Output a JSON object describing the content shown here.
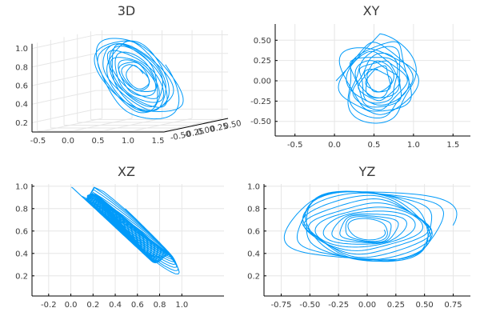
{
  "series_color": "#009af9",
  "chart_data": [
    {
      "type": "line3d",
      "title": "3D",
      "x_ticks": [
        "-0.5",
        "0.0",
        "0.5",
        "1.0",
        "1.5"
      ],
      "y_ticks": [
        "-0.50",
        "-0.25",
        "0.00",
        "0.25",
        "0.50"
      ],
      "z_ticks": [
        "0.2",
        "0.4",
        "0.6",
        "0.8",
        "1.0"
      ],
      "xlim": [
        -0.6,
        1.6
      ],
      "ylim": [
        -0.6,
        0.6
      ],
      "zlim": [
        0.1,
        1.05
      ],
      "grid": true,
      "legend": "none"
    },
    {
      "type": "line",
      "title": "XY",
      "x_ticks": [
        -0.5,
        0.0,
        0.5,
        1.0,
        1.5
      ],
      "x_tick_labels": [
        "-0.5",
        "0.0",
        "0.5",
        "1.0",
        "1.5"
      ],
      "y_ticks": [
        -0.5,
        -0.25,
        0.0,
        0.25,
        0.5
      ],
      "y_tick_labels": [
        "-0.50",
        "-0.25",
        "0.00",
        "0.25",
        "0.50"
      ],
      "xlim": [
        -0.75,
        1.72
      ],
      "ylim": [
        -0.68,
        0.7
      ],
      "grid": true,
      "legend": "none"
    },
    {
      "type": "line",
      "title": "XZ",
      "x_ticks": [
        -0.2,
        0.0,
        0.2,
        0.4,
        0.6,
        0.8,
        1.0
      ],
      "x_tick_labels": [
        "-0.2",
        "0.0",
        "0.2",
        "0.4",
        "0.6",
        "0.8",
        "1.0"
      ],
      "y_ticks": [
        0.2,
        0.4,
        0.6,
        0.8,
        1.0
      ],
      "y_tick_labels": [
        "0.2",
        "0.4",
        "0.6",
        "0.8",
        "1.0"
      ],
      "xlim": [
        -0.35,
        1.38
      ],
      "ylim": [
        0.02,
        1.02
      ],
      "grid": true,
      "legend": "none"
    },
    {
      "type": "line",
      "title": "YZ",
      "x_ticks": [
        -0.75,
        -0.5,
        -0.25,
        0.0,
        0.25,
        0.5,
        0.75
      ],
      "x_tick_labels": [
        "-0.75",
        "-0.50",
        "-0.25",
        "0.00",
        "0.25",
        "0.50",
        "0.75"
      ],
      "y_ticks": [
        0.2,
        0.4,
        0.6,
        0.8,
        1.0
      ],
      "y_tick_labels": [
        "0.2",
        "0.4",
        "0.6",
        "0.8",
        "1.0"
      ],
      "xlim": [
        -0.9,
        0.9
      ],
      "ylim": [
        0.02,
        1.02
      ],
      "grid": true,
      "legend": "none"
    }
  ]
}
